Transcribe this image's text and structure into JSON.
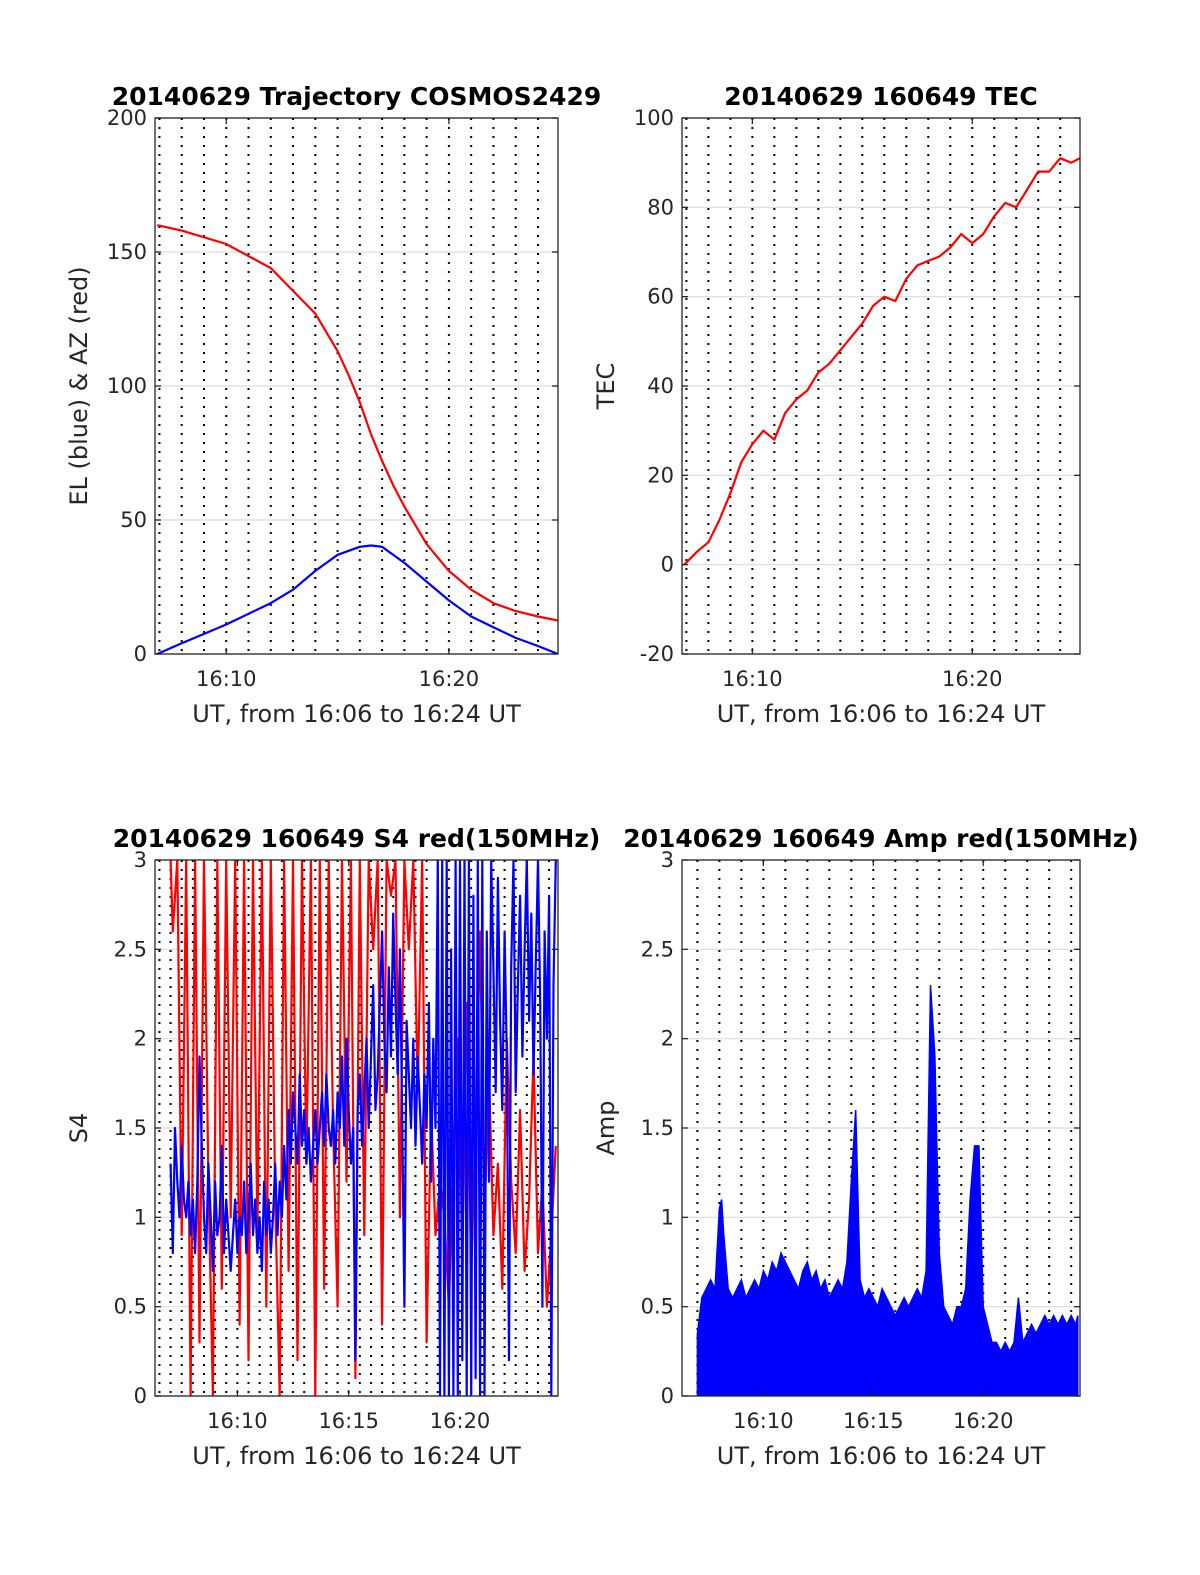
{
  "chart_data": [
    {
      "id": "trajectory",
      "type": "line",
      "title": "20140629 Trajectory COSMOS2429",
      "xlabel": "UT, from 16:06 to 16:24 UT",
      "ylabel": "EL (blue) & AZ (red)",
      "xlim": [
        16.8,
        34.9
      ],
      "ylim": [
        0,
        200
      ],
      "yticks": [
        0,
        50,
        100,
        150,
        200
      ],
      "xticks": [
        {
          "value": 20,
          "label": "16:10"
        },
        {
          "value": 30,
          "label": "16:20"
        }
      ],
      "grid": {
        "horizontal": true,
        "vertical_dotted_every_minutes": 1
      },
      "series": [
        {
          "color": "#ff0000",
          "x": [
            16.9,
            18,
            20,
            22,
            24,
            25,
            25.5,
            26,
            26.5,
            27,
            27.5,
            28,
            29,
            30,
            31,
            32,
            33,
            34,
            34.9
          ],
          "y": [
            160,
            158,
            153,
            144,
            127,
            113,
            104,
            94,
            82,
            72,
            63,
            55,
            41,
            31,
            24,
            19,
            16,
            14,
            12.5
          ]
        },
        {
          "color": "#0000ff",
          "x": [
            16.9,
            18,
            20,
            22,
            23,
            24,
            25,
            26,
            26.5,
            27,
            28,
            29,
            30,
            31,
            32,
            33,
            34,
            34.9
          ],
          "y": [
            0,
            4,
            11,
            19,
            24,
            31,
            37,
            40,
            40.5,
            40,
            34,
            27,
            20,
            14,
            10,
            6,
            3,
            0
          ]
        }
      ]
    },
    {
      "id": "tec",
      "type": "line",
      "title": "20140629 160649 TEC",
      "xlabel": "UT, from 16:06 to 16:24 UT",
      "ylabel": "TEC",
      "xlim": [
        16.8,
        34.9
      ],
      "ylim": [
        -20,
        100
      ],
      "yticks": [
        -20,
        0,
        20,
        40,
        60,
        80,
        100
      ],
      "xticks": [
        {
          "value": 20,
          "label": "16:10"
        },
        {
          "value": 30,
          "label": "16:20"
        }
      ],
      "grid": {
        "horizontal": true,
        "vertical_dotted_every_minutes": 1
      },
      "series": [
        {
          "color": "#ff0000",
          "x": [
            16.9,
            17.5,
            18,
            18.5,
            19,
            19.5,
            20,
            20.5,
            21,
            21.5,
            22,
            22.5,
            23,
            23.5,
            24,
            24.5,
            25,
            25.5,
            26,
            26.5,
            27,
            27.5,
            28,
            28.5,
            29,
            29.5,
            30,
            30.5,
            31,
            31.5,
            32,
            32.5,
            33,
            33.5,
            34,
            34.5,
            34.9
          ],
          "y": [
            0,
            3,
            5,
            10,
            16,
            23,
            27,
            30,
            28,
            34,
            37,
            39,
            43,
            45,
            48,
            51,
            54,
            58,
            60,
            59,
            64,
            67,
            68,
            69,
            71,
            74,
            72,
            74,
            78,
            81,
            80,
            84,
            88,
            88,
            91,
            90,
            91
          ]
        }
      ]
    },
    {
      "id": "s4",
      "type": "line",
      "title": "20140629 160649 S4 red(150MHz)",
      "xlabel": "UT, from 16:06 to 16:24 UT",
      "ylabel": "S4",
      "xlim": [
        16.3,
        34.4
      ],
      "ylim": [
        0,
        3
      ],
      "yticks": [
        0,
        0.5,
        1,
        1.5,
        2,
        2.5,
        3
      ],
      "xticks": [
        {
          "value": 20,
          "label": "16:10"
        },
        {
          "value": 25,
          "label": "16:15"
        },
        {
          "value": 30,
          "label": "16:20"
        }
      ],
      "grid": {
        "horizontal": true,
        "vertical_dotted_every_minutes": 0.5
      },
      "series": [
        {
          "color": "#ff0000",
          "x": [
            17.0,
            17.1,
            17.3,
            17.5,
            17.7,
            17.9,
            18.1,
            18.3,
            18.5,
            18.7,
            18.9,
            19.1,
            19.3,
            19.5,
            19.7,
            19.9,
            20.1,
            20.3,
            20.5,
            20.7,
            20.9,
            21.1,
            21.3,
            21.5,
            21.7,
            21.9,
            22.1,
            22.3,
            22.5,
            22.7,
            22.9,
            23.1,
            23.3,
            23.5,
            23.7,
            23.9,
            24.1,
            24.3,
            24.5,
            24.7,
            24.9,
            25.1,
            25.3,
            25.5,
            25.7,
            25.9,
            26.1,
            26.3,
            26.5,
            26.7,
            26.9,
            27.1,
            27.3,
            27.5,
            27.7,
            27.9,
            28.1,
            28.3,
            28.5,
            28.7,
            28.9,
            29.1,
            29.3,
            29.5,
            29.7,
            29.9,
            30.1,
            30.3,
            30.5,
            30.7,
            30.9,
            31.1,
            31.3,
            31.5,
            31.7,
            31.9,
            32.1,
            32.3,
            32.5,
            32.7,
            32.9,
            33.1,
            33.3,
            33.5,
            33.7,
            33.9,
            34.1,
            34.3
          ],
          "y": [
            3,
            2.6,
            3,
            0.9,
            3,
            0,
            3,
            0.3,
            3,
            1.2,
            0,
            3,
            0.6,
            3,
            1.0,
            3,
            0.4,
            3,
            0.2,
            3,
            0.9,
            3,
            0.5,
            3,
            1.1,
            0,
            3,
            0.7,
            3,
            0.2,
            3,
            1.3,
            3,
            0,
            3,
            0.6,
            3,
            1.5,
            0.5,
            3,
            1.2,
            3,
            0.1,
            3,
            0.9,
            3,
            2.5,
            3,
            0.4,
            3,
            2.8,
            3,
            1.0,
            3,
            2.5,
            3,
            1.7,
            3,
            0.3,
            1.6,
            0.9,
            1.2,
            1.0,
            0.5,
            1.4,
            2.0,
            0.8,
            2.2,
            0.7,
            1.5,
            2.6,
            1.0,
            1.8,
            0.9,
            1.3,
            0.6,
            2.0,
            1.2,
            0.8,
            1.6,
            0.7,
            1.1,
            1.9,
            0.8,
            1.2,
            0.5,
            0.9,
            1.4
          ]
        },
        {
          "color": "#0000ff",
          "x": [
            17.0,
            17.1,
            17.2,
            17.3,
            17.4,
            17.5,
            17.6,
            17.7,
            17.8,
            17.9,
            18.0,
            18.1,
            18.2,
            18.3,
            18.4,
            18.5,
            18.6,
            18.7,
            18.8,
            18.9,
            19.0,
            19.1,
            19.2,
            19.3,
            19.4,
            19.5,
            19.6,
            19.7,
            19.8,
            19.9,
            20.0,
            20.1,
            20.2,
            20.3,
            20.4,
            20.5,
            20.6,
            20.7,
            20.8,
            20.9,
            21.0,
            21.1,
            21.2,
            21.3,
            21.4,
            21.5,
            21.6,
            21.7,
            21.8,
            21.9,
            22.0,
            22.1,
            22.2,
            22.3,
            22.4,
            22.5,
            22.6,
            22.7,
            22.8,
            22.9,
            23.0,
            23.1,
            23.2,
            23.3,
            23.4,
            23.5,
            23.6,
            23.7,
            23.8,
            23.9,
            24.0,
            24.1,
            24.2,
            24.3,
            24.4,
            24.5,
            24.6,
            24.7,
            24.8,
            24.9,
            25.0,
            25.1,
            25.2,
            25.3,
            25.4,
            25.5,
            25.6,
            25.7,
            25.8,
            25.9,
            26.0,
            26.1,
            26.2,
            26.3,
            26.4,
            26.5,
            26.6,
            26.7,
            26.8,
            26.9,
            27.0,
            27.1,
            27.2,
            27.3,
            27.4,
            27.5,
            27.6,
            27.7,
            27.8,
            27.9,
            28.0,
            28.1,
            28.2,
            28.3,
            28.4,
            28.5,
            28.6,
            28.7,
            28.8,
            28.9,
            29.0,
            29.1,
            29.2,
            29.3,
            29.4,
            29.5,
            29.6,
            29.7,
            29.8,
            29.9,
            30.0,
            30.1,
            30.2,
            30.3,
            30.4,
            30.5,
            30.6,
            30.7,
            30.8,
            30.9,
            31.0,
            31.1,
            31.2,
            31.3,
            31.4,
            31.5,
            31.6,
            31.7,
            31.8,
            31.9,
            32.0,
            32.1,
            32.2,
            32.3,
            32.4,
            32.5,
            32.6,
            32.7,
            32.8,
            32.9,
            33.0,
            33.1,
            33.2,
            33.3,
            33.4,
            33.5,
            33.6,
            33.7,
            33.8,
            33.9,
            34.0,
            34.1,
            34.2,
            34.3
          ],
          "y": [
            1.3,
            0.8,
            1.5,
            1.2,
            1.0,
            1.4,
            1.1,
            1.0,
            1.2,
            0.9,
            1.1,
            0.8,
            1.2,
            1.9,
            1.4,
            1.0,
            0.8,
            1.3,
            1.0,
            0.7,
            1.2,
            0.9,
            1.0,
            1.4,
            0.8,
            1.1,
            0.9,
            0.7,
            0.9,
            1.1,
            0.8,
            1.0,
            0.9,
            1.2,
            0.8,
            1.0,
            1.3,
            0.9,
            1.1,
            0.8,
            1.0,
            0.7,
            1.2,
            0.9,
            1.1,
            0.8,
            1.0,
            1.3,
            0.9,
            1.2,
            1.0,
            1.4,
            1.1,
            1.6,
            1.3,
            1.7,
            1.5,
            1.3,
            1.8,
            1.4,
            1.6,
            1.3,
            1.5,
            1.2,
            1.4,
            1.6,
            1.3,
            1.5,
            1.7,
            1.4,
            1.8,
            1.5,
            1.4,
            1.6,
            1.3,
            1.7,
            1.5,
            1.9,
            1.4,
            2.0,
            1.6,
            1.3,
            1.5,
            0.2,
            1.6,
            1.8,
            1.4,
            1.7,
            2.0,
            1.5,
            1.9,
            2.3,
            1.6,
            1.8,
            2.2,
            2.6,
            2.0,
            1.7,
            2.4,
            1.9,
            2.7,
            2.2,
            1.8,
            2.5,
            1.6,
            0.5,
            2.1,
            1.8,
            1.5,
            2.0,
            1.4,
            1.9,
            1.6,
            1.3,
            1.8,
            1.5,
            2.2,
            1.2,
            2.0,
            1.5,
            3,
            0,
            3,
            0,
            3,
            0,
            2.5,
            0,
            3,
            0,
            3,
            0.2,
            3,
            0,
            3,
            0,
            2.8,
            0.1,
            3,
            0,
            3,
            0,
            2.6,
            1.2,
            3,
            2.4,
            1.7,
            2.9,
            2.1,
            1.6,
            2.6,
            1.9,
            0.2,
            2.4,
            3,
            1.7,
            2.3,
            2.8,
            1.9,
            2.5,
            3,
            2.1,
            2.7,
            1.8,
            2.4,
            3,
            2.2,
            0.5,
            2.6,
            2.0,
            2.8,
            0,
            2.3,
            3
          ]
        }
      ]
    },
    {
      "id": "amp",
      "type": "line",
      "title": "20140629 160649 Amp red(150MHz)",
      "xlabel": "UT, from 16:06 to 16:24 UT",
      "ylabel": "Amp",
      "xlim": [
        16.3,
        34.4
      ],
      "ylim": [
        0,
        3
      ],
      "yticks": [
        0,
        0.5,
        1,
        1.5,
        2,
        2.5,
        3
      ],
      "xticks": [
        {
          "value": 20,
          "label": "16:10"
        },
        {
          "value": 25,
          "label": "16:15"
        },
        {
          "value": 30,
          "label": "16:20"
        }
      ],
      "grid": {
        "horizontal": true,
        "vertical_dotted_every_minutes": 1
      },
      "series": [
        {
          "color": "#0000ff",
          "fill_to_zero": true,
          "x": [
            17.0,
            17.2,
            17.4,
            17.6,
            17.8,
            18.0,
            18.1,
            18.2,
            18.4,
            18.6,
            18.8,
            19.0,
            19.2,
            19.4,
            19.6,
            19.8,
            20.0,
            20.2,
            20.4,
            20.6,
            20.8,
            21.0,
            21.2,
            21.4,
            21.6,
            21.8,
            22.0,
            22.2,
            22.4,
            22.6,
            22.8,
            23.0,
            23.2,
            23.4,
            23.6,
            23.8,
            24.0,
            24.2,
            24.4,
            24.6,
            24.8,
            25.0,
            25.2,
            25.4,
            25.6,
            25.8,
            26.0,
            26.2,
            26.4,
            26.6,
            26.8,
            27.0,
            27.2,
            27.4,
            27.6,
            27.8,
            28.0,
            28.2,
            28.4,
            28.6,
            28.8,
            29.0,
            29.2,
            29.4,
            29.6,
            29.8,
            30.0,
            30.2,
            30.4,
            30.6,
            30.8,
            31.0,
            31.2,
            31.4,
            31.6,
            31.8,
            32.0,
            32.2,
            32.4,
            32.6,
            32.8,
            33.0,
            33.2,
            33.4,
            33.6,
            33.8,
            34.0,
            34.2,
            34.3
          ],
          "y": [
            0.35,
            0.55,
            0.6,
            0.65,
            0.6,
            1.05,
            1.1,
            0.9,
            0.6,
            0.55,
            0.6,
            0.65,
            0.55,
            0.6,
            0.65,
            0.6,
            0.7,
            0.65,
            0.75,
            0.7,
            0.8,
            0.75,
            0.7,
            0.65,
            0.6,
            0.7,
            0.75,
            0.65,
            0.7,
            0.6,
            0.65,
            0.55,
            0.6,
            0.65,
            0.6,
            0.75,
            1.2,
            1.6,
            0.65,
            0.55,
            0.6,
            0.55,
            0.5,
            0.6,
            0.55,
            0.5,
            0.45,
            0.5,
            0.55,
            0.5,
            0.55,
            0.6,
            0.55,
            0.7,
            2.3,
            1.9,
            0.8,
            0.5,
            0.45,
            0.4,
            0.5,
            0.5,
            0.6,
            1.1,
            1.4,
            1.4,
            0.5,
            0.4,
            0.3,
            0.3,
            0.25,
            0.3,
            0.25,
            0.3,
            0.55,
            0.3,
            0.35,
            0.4,
            0.35,
            0.4,
            0.45,
            0.4,
            0.45,
            0.4,
            0.45,
            0.4,
            0.45,
            0.4,
            0.45
          ]
        }
      ]
    }
  ]
}
